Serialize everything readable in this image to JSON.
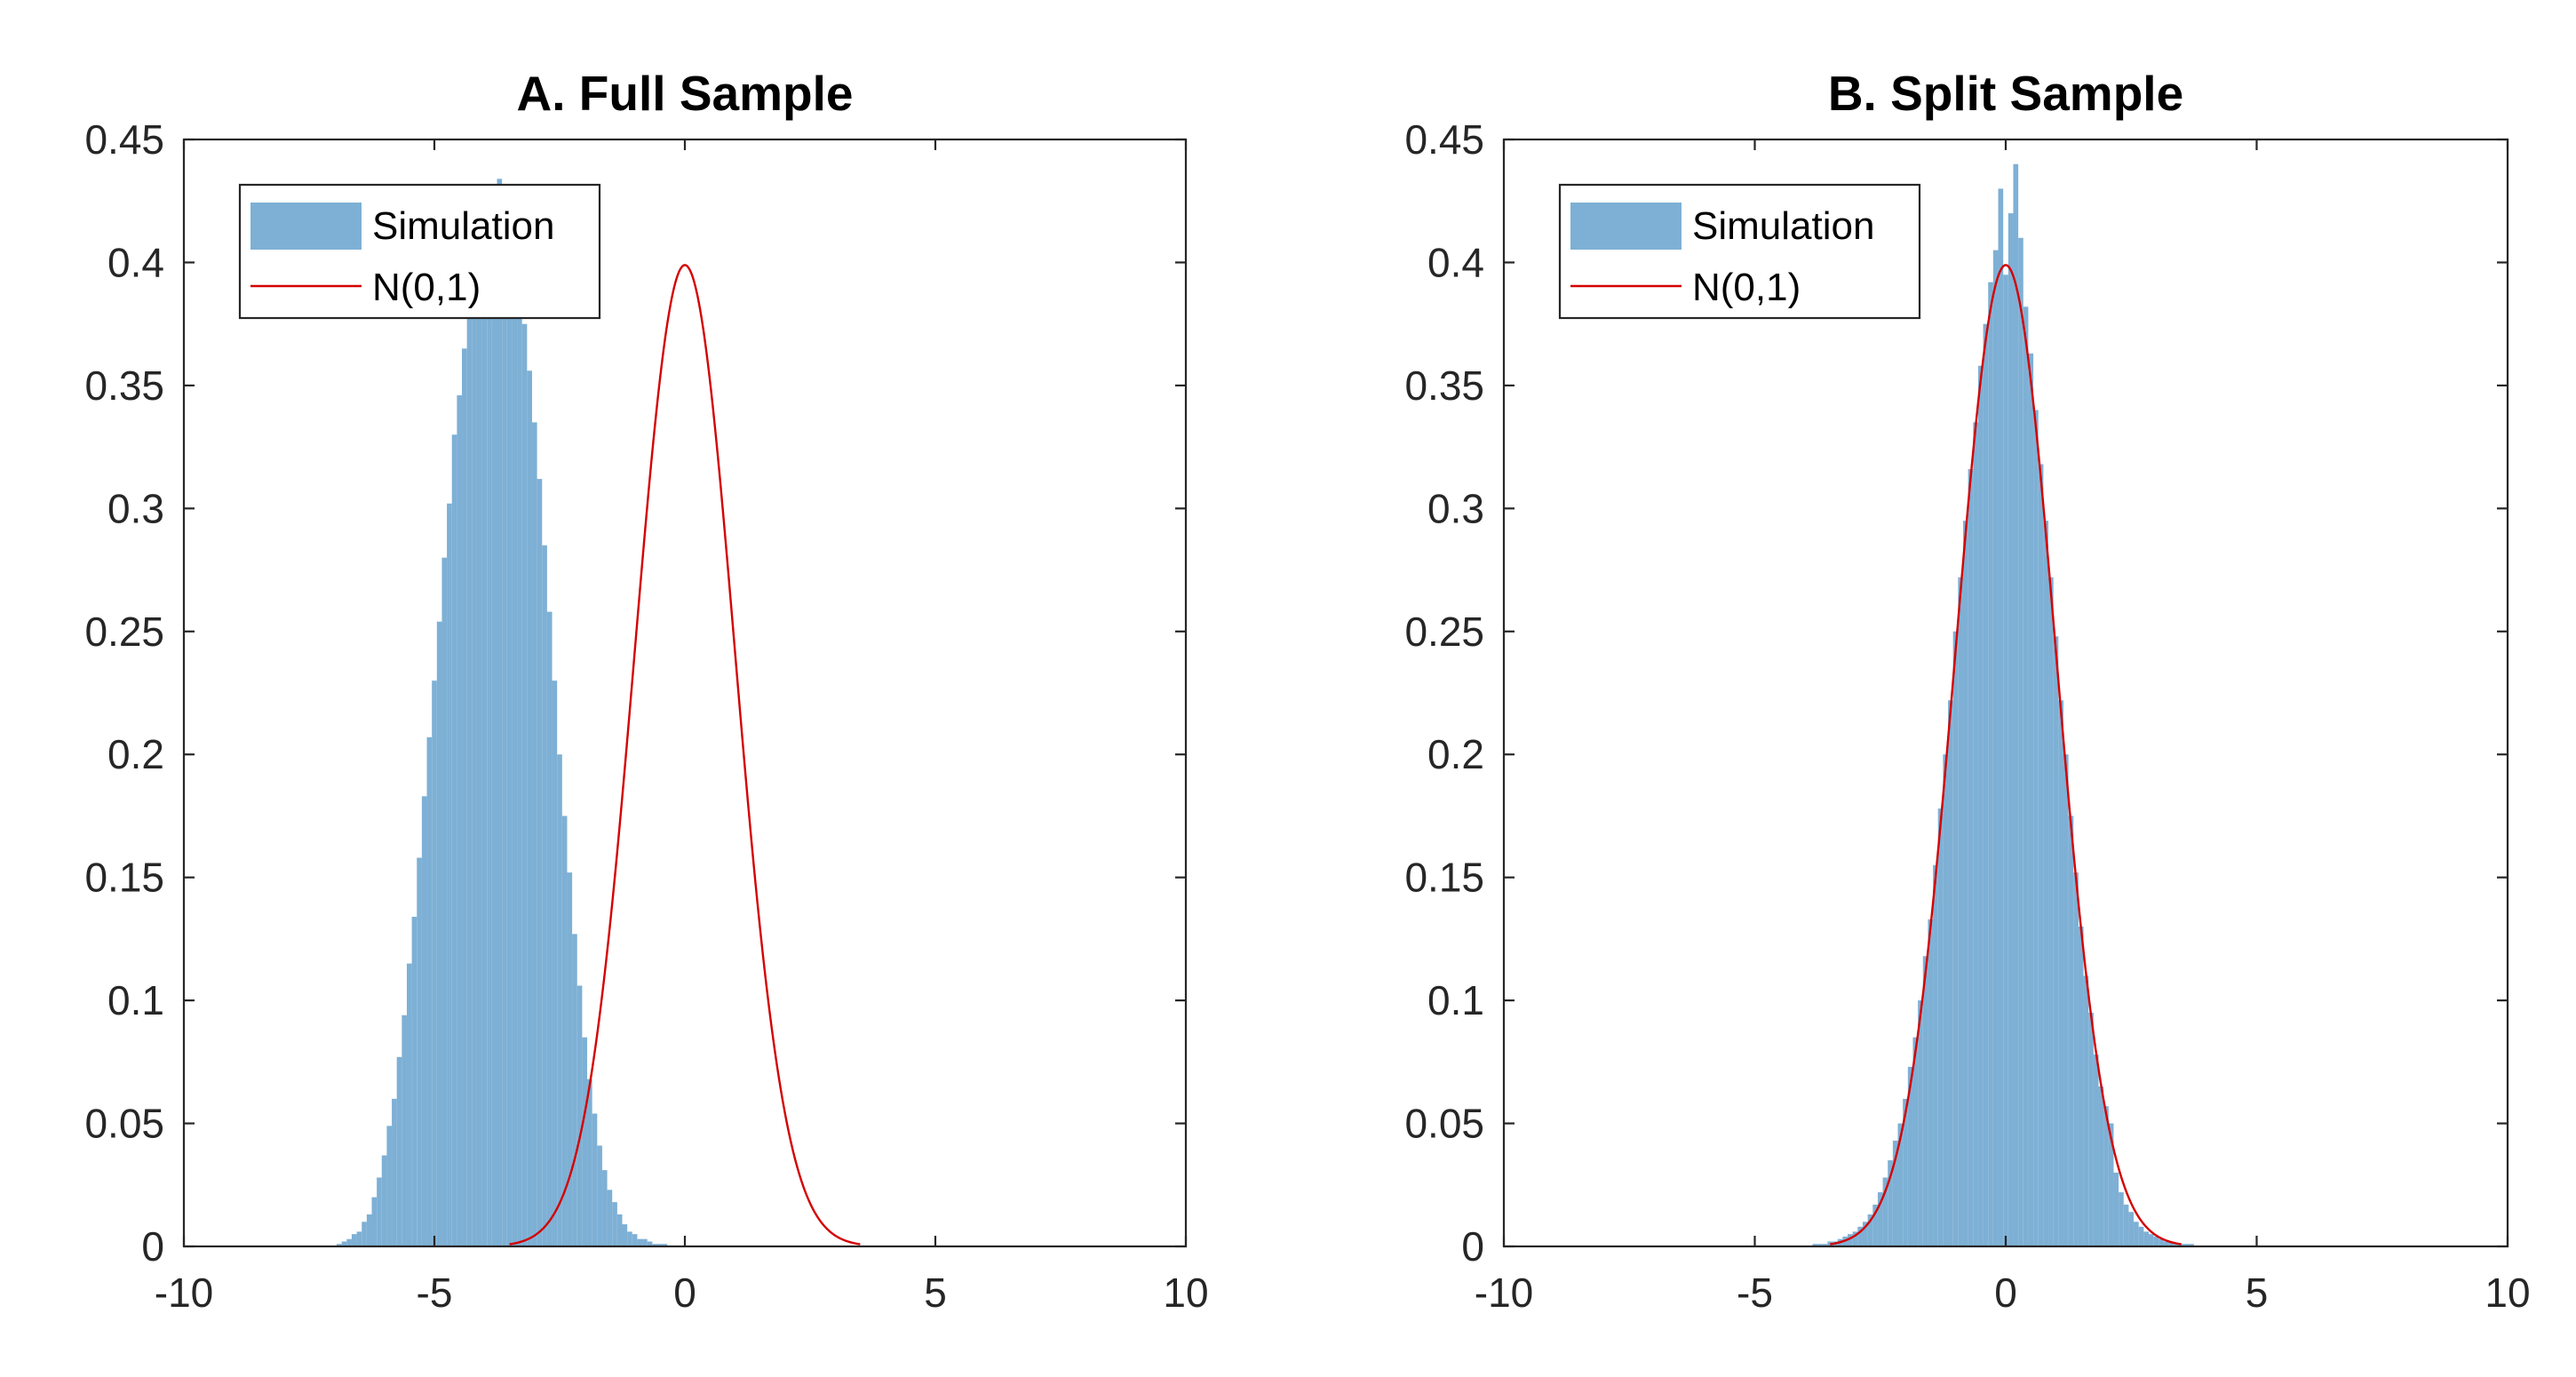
{
  "figure": {
    "colors": {
      "histogram": "#7EB0D5",
      "normal_curve": "#D40000",
      "axes": "#262626"
    }
  },
  "chart_data": [
    {
      "type": "bar",
      "title": "A.  Full Sample",
      "xlabel": "",
      "ylabel": "",
      "xlim": [
        -10,
        10
      ],
      "ylim": [
        0,
        0.45
      ],
      "xticks": [
        -10,
        -5,
        0,
        5,
        10
      ],
      "xtick_labels": [
        "-10",
        "-5",
        "0",
        "5",
        "10"
      ],
      "yticks": [
        0,
        0.05,
        0.1,
        0.15,
        0.2,
        0.25,
        0.3,
        0.35,
        0.4,
        0.45
      ],
      "ytick_labels": [
        "0",
        "0.05",
        "0.1",
        "0.15",
        "0.2",
        "0.25",
        "0.3",
        "0.35",
        "0.4",
        "0.45"
      ],
      "grid": false,
      "legend_position": "top-left",
      "series": [
        {
          "name": "Simulation",
          "kind": "histogram",
          "bin_width": 0.1,
          "bin_centers": [
            -6.9,
            -6.8,
            -6.7,
            -6.6,
            -6.5,
            -6.4,
            -6.3,
            -6.2,
            -6.1,
            -6.0,
            -5.9,
            -5.8,
            -5.7,
            -5.6,
            -5.5,
            -5.4,
            -5.3,
            -5.2,
            -5.1,
            -5.0,
            -4.9,
            -4.8,
            -4.7,
            -4.6,
            -4.5,
            -4.4,
            -4.3,
            -4.2,
            -4.1,
            -4.0,
            -3.9,
            -3.8,
            -3.7,
            -3.6,
            -3.5,
            -3.4,
            -3.3,
            -3.2,
            -3.1,
            -3.0,
            -2.9,
            -2.8,
            -2.7,
            -2.6,
            -2.5,
            -2.4,
            -2.3,
            -2.2,
            -2.1,
            -2.0,
            -1.9,
            -1.8,
            -1.7,
            -1.6,
            -1.5,
            -1.4,
            -1.3,
            -1.2,
            -1.1,
            -1.0,
            -0.9,
            -0.8,
            -0.7,
            -0.6,
            -0.5,
            -0.4,
            -0.3,
            -0.2,
            -0.1,
            0.0
          ],
          "values": [
            0.001,
            0.002,
            0.003,
            0.005,
            0.006,
            0.01,
            0.013,
            0.02,
            0.028,
            0.037,
            0.049,
            0.06,
            0.077,
            0.094,
            0.115,
            0.134,
            0.158,
            0.183,
            0.207,
            0.23,
            0.254,
            0.28,
            0.302,
            0.33,
            0.346,
            0.365,
            0.382,
            0.396,
            0.405,
            0.413,
            0.42,
            0.43,
            0.434,
            0.428,
            0.42,
            0.412,
            0.396,
            0.375,
            0.356,
            0.335,
            0.312,
            0.285,
            0.258,
            0.23,
            0.2,
            0.175,
            0.152,
            0.127,
            0.106,
            0.085,
            0.068,
            0.054,
            0.041,
            0.031,
            0.023,
            0.018,
            0.013,
            0.009,
            0.006,
            0.005,
            0.003,
            0.003,
            0.002,
            0.001,
            0.001,
            0.001,
            0.0,
            0.0,
            0.0,
            0.0
          ]
        },
        {
          "name": "N(0,1)",
          "kind": "line",
          "mean": 0,
          "sd": 1,
          "x_range": [
            -3.5,
            3.5
          ]
        }
      ]
    },
    {
      "type": "bar",
      "title": "B.  Split Sample",
      "xlabel": "",
      "ylabel": "",
      "xlim": [
        -10,
        10
      ],
      "ylim": [
        0,
        0.45
      ],
      "xticks": [
        -10,
        -5,
        0,
        5,
        10
      ],
      "xtick_labels": [
        "-10",
        "-5",
        "0",
        "5",
        "10"
      ],
      "yticks": [
        0,
        0.05,
        0.1,
        0.15,
        0.2,
        0.25,
        0.3,
        0.35,
        0.4,
        0.45
      ],
      "ytick_labels": [
        "0",
        "0.05",
        "0.1",
        "0.15",
        "0.2",
        "0.25",
        "0.3",
        "0.35",
        "0.4",
        "0.45"
      ],
      "grid": false,
      "legend_position": "top-left",
      "series": [
        {
          "name": "Simulation",
          "kind": "histogram",
          "bin_width": 0.1,
          "bin_centers": [
            -3.9,
            -3.8,
            -3.7,
            -3.6,
            -3.5,
            -3.4,
            -3.3,
            -3.2,
            -3.1,
            -3.0,
            -2.9,
            -2.8,
            -2.7,
            -2.6,
            -2.5,
            -2.4,
            -2.3,
            -2.2,
            -2.1,
            -2.0,
            -1.9,
            -1.8,
            -1.7,
            -1.6,
            -1.5,
            -1.4,
            -1.3,
            -1.2,
            -1.1,
            -1.0,
            -0.9,
            -0.8,
            -0.7,
            -0.6,
            -0.5,
            -0.4,
            -0.3,
            -0.2,
            -0.1,
            0.0,
            0.1,
            0.2,
            0.3,
            0.4,
            0.5,
            0.6,
            0.7,
            0.8,
            0.9,
            1.0,
            1.1,
            1.2,
            1.3,
            1.4,
            1.5,
            1.6,
            1.7,
            1.8,
            1.9,
            2.0,
            2.1,
            2.2,
            2.3,
            2.4,
            2.5,
            2.6,
            2.7,
            2.8,
            2.9,
            3.0,
            3.1,
            3.2,
            3.3,
            3.4,
            3.5,
            3.6,
            3.7,
            3.8,
            3.9
          ],
          "values": [
            0.0,
            0.001,
            0.001,
            0.001,
            0.002,
            0.002,
            0.003,
            0.004,
            0.005,
            0.006,
            0.008,
            0.01,
            0.013,
            0.017,
            0.022,
            0.028,
            0.035,
            0.043,
            0.05,
            0.06,
            0.073,
            0.085,
            0.1,
            0.118,
            0.133,
            0.155,
            0.178,
            0.2,
            0.222,
            0.25,
            0.272,
            0.295,
            0.316,
            0.335,
            0.358,
            0.375,
            0.392,
            0.405,
            0.43,
            0.395,
            0.42,
            0.44,
            0.41,
            0.382,
            0.363,
            0.34,
            0.318,
            0.295,
            0.272,
            0.248,
            0.222,
            0.2,
            0.175,
            0.152,
            0.13,
            0.11,
            0.095,
            0.078,
            0.065,
            0.057,
            0.05,
            0.03,
            0.022,
            0.017,
            0.014,
            0.01,
            0.008,
            0.006,
            0.005,
            0.004,
            0.003,
            0.002,
            0.002,
            0.001,
            0.001,
            0.001,
            0.001,
            0.0,
            0.0
          ]
        },
        {
          "name": "N(0,1)",
          "kind": "line",
          "mean": 0,
          "sd": 1,
          "x_range": [
            -3.5,
            3.5
          ]
        }
      ]
    }
  ]
}
